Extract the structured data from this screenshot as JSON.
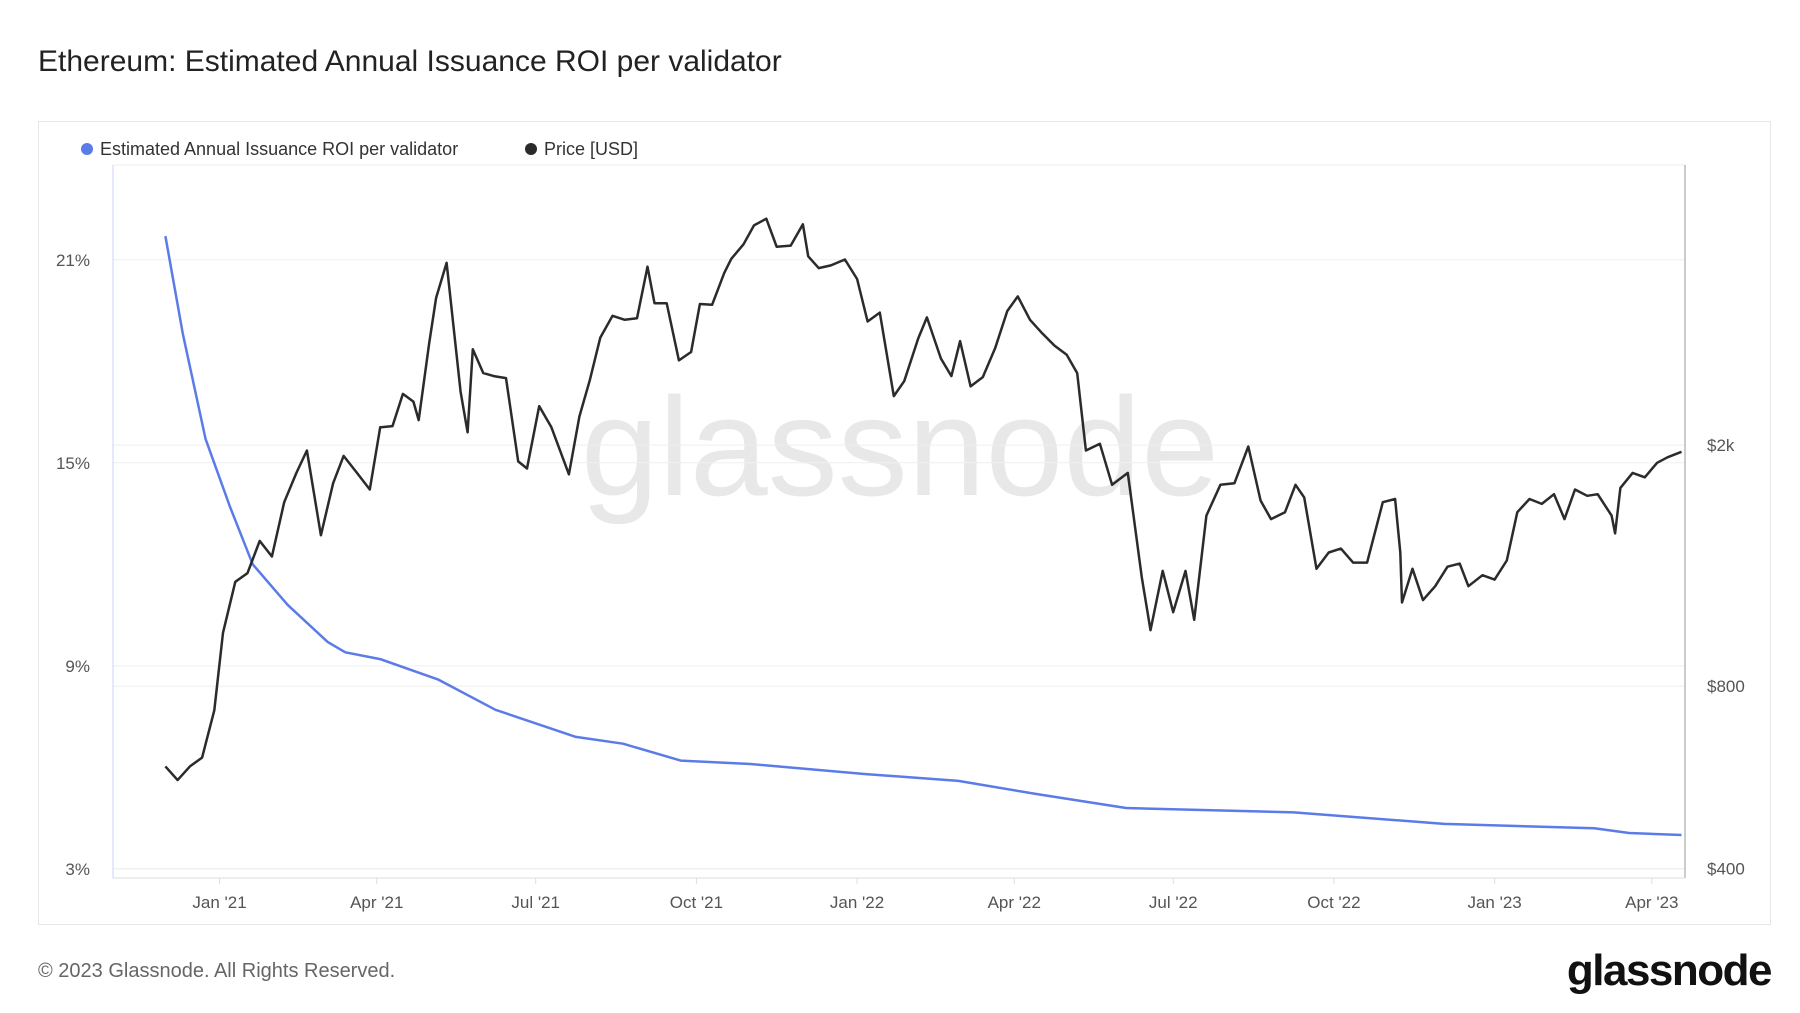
{
  "title": "Ethereum: Estimated Annual Issuance ROI per validator",
  "footer": "© 2023 Glassnode. All Rights Reserved.",
  "logo": "glassnode",
  "watermark": "glassnode",
  "chart_data": {
    "type": "line",
    "title": "Ethereum: Estimated Annual Issuance ROI per validator",
    "legend_position": "top-left",
    "grid": true,
    "x_range": [
      "2020-11-01",
      "2023-04-20"
    ],
    "x_ticks": [
      {
        "date": "2021-01-01",
        "label": "Jan '21"
      },
      {
        "date": "2021-04-01",
        "label": "Apr '21"
      },
      {
        "date": "2021-07-01",
        "label": "Jul '21"
      },
      {
        "date": "2021-10-01",
        "label": "Oct '21"
      },
      {
        "date": "2022-01-01",
        "label": "Jan '22"
      },
      {
        "date": "2022-04-01",
        "label": "Apr '22"
      },
      {
        "date": "2022-07-01",
        "label": "Jul '22"
      },
      {
        "date": "2022-10-01",
        "label": "Oct '22"
      },
      {
        "date": "2023-01-01",
        "label": "Jan '23"
      },
      {
        "date": "2023-04-01",
        "label": "Apr '23"
      }
    ],
    "y_left": {
      "range": [
        2.73,
        23.8
      ],
      "ticks": [
        {
          "v": 3,
          "label": "3%"
        },
        {
          "v": 9,
          "label": "9%"
        },
        {
          "v": 15,
          "label": "15%"
        },
        {
          "v": 21,
          "label": "21%"
        }
      ],
      "scale": "linear"
    },
    "y_right": {
      "range": [
        386,
        5800
      ],
      "ticks": [
        {
          "v": 400,
          "label": "$400"
        },
        {
          "v": 800,
          "label": "$800"
        },
        {
          "v": 2000,
          "label": "$2k"
        }
      ],
      "scale": "log"
    },
    "series": [
      {
        "name": "Estimated Annual Issuance ROI per validator",
        "axis": "left",
        "color": "#5b7be8",
        "points": [
          [
            "2020-12-01",
            21.7
          ],
          [
            "2020-12-11",
            18.8
          ],
          [
            "2020-12-24",
            15.7
          ],
          [
            "2021-01-07",
            13.7
          ],
          [
            "2021-01-20",
            12.0
          ],
          [
            "2021-02-09",
            10.8
          ],
          [
            "2021-03-04",
            9.7
          ],
          [
            "2021-03-14",
            9.4
          ],
          [
            "2021-04-03",
            9.2
          ],
          [
            "2021-05-06",
            8.6
          ],
          [
            "2021-06-08",
            7.7
          ],
          [
            "2021-07-24",
            6.9
          ],
          [
            "2021-08-20",
            6.7
          ],
          [
            "2021-09-22",
            6.2
          ],
          [
            "2021-11-01",
            6.1
          ],
          [
            "2022-01-06",
            5.8
          ],
          [
            "2022-02-28",
            5.6
          ],
          [
            "2022-04-15",
            5.2
          ],
          [
            "2022-06-04",
            4.8
          ],
          [
            "2022-09-08",
            4.67
          ],
          [
            "2022-12-03",
            4.33
          ],
          [
            "2023-02-27",
            4.2
          ],
          [
            "2023-03-19",
            4.06
          ],
          [
            "2023-04-18",
            4.0
          ]
        ]
      },
      {
        "name": "Price [USD]",
        "axis": "right",
        "color": "#2b2b2b",
        "points": [
          [
            "2020-12-01",
            590
          ],
          [
            "2020-12-08",
            560
          ],
          [
            "2020-12-15",
            590
          ],
          [
            "2020-12-22",
            610
          ],
          [
            "2020-12-29",
            730
          ],
          [
            "2021-01-03",
            980
          ],
          [
            "2021-01-10",
            1190
          ],
          [
            "2021-01-17",
            1230
          ],
          [
            "2021-01-24",
            1390
          ],
          [
            "2021-01-31",
            1310
          ],
          [
            "2021-02-07",
            1610
          ],
          [
            "2021-02-14",
            1800
          ],
          [
            "2021-02-20",
            1960
          ],
          [
            "2021-02-28",
            1420
          ],
          [
            "2021-03-07",
            1730
          ],
          [
            "2021-03-13",
            1920
          ],
          [
            "2021-03-20",
            1810
          ],
          [
            "2021-03-28",
            1690
          ],
          [
            "2021-04-03",
            2140
          ],
          [
            "2021-04-10",
            2150
          ],
          [
            "2021-04-16",
            2430
          ],
          [
            "2021-04-22",
            2360
          ],
          [
            "2021-04-25",
            2200
          ],
          [
            "2021-05-01",
            2940
          ],
          [
            "2021-05-05",
            3500
          ],
          [
            "2021-05-11",
            4000
          ],
          [
            "2021-05-19",
            2450
          ],
          [
            "2021-05-23",
            2100
          ],
          [
            "2021-05-26",
            2880
          ],
          [
            "2021-06-01",
            2630
          ],
          [
            "2021-06-07",
            2600
          ],
          [
            "2021-06-14",
            2580
          ],
          [
            "2021-06-21",
            1880
          ],
          [
            "2021-06-26",
            1830
          ],
          [
            "2021-07-03",
            2320
          ],
          [
            "2021-07-10",
            2140
          ],
          [
            "2021-07-20",
            1790
          ],
          [
            "2021-07-26",
            2230
          ],
          [
            "2021-08-01",
            2560
          ],
          [
            "2021-08-07",
            3010
          ],
          [
            "2021-08-14",
            3270
          ],
          [
            "2021-08-21",
            3220
          ],
          [
            "2021-08-28",
            3240
          ],
          [
            "2021-09-03",
            3940
          ],
          [
            "2021-09-07",
            3430
          ],
          [
            "2021-09-14",
            3430
          ],
          [
            "2021-09-21",
            2760
          ],
          [
            "2021-09-28",
            2850
          ],
          [
            "2021-10-03",
            3420
          ],
          [
            "2021-10-10",
            3410
          ],
          [
            "2021-10-17",
            3850
          ],
          [
            "2021-10-21",
            4060
          ],
          [
            "2021-10-28",
            4290
          ],
          [
            "2021-11-03",
            4610
          ],
          [
            "2021-11-10",
            4730
          ],
          [
            "2021-11-16",
            4250
          ],
          [
            "2021-11-24",
            4270
          ],
          [
            "2021-12-01",
            4630
          ],
          [
            "2021-12-04",
            4100
          ],
          [
            "2021-12-10",
            3920
          ],
          [
            "2021-12-17",
            3960
          ],
          [
            "2021-12-25",
            4050
          ],
          [
            "2022-01-01",
            3760
          ],
          [
            "2022-01-07",
            3200
          ],
          [
            "2022-01-14",
            3310
          ],
          [
            "2022-01-22",
            2410
          ],
          [
            "2022-01-28",
            2550
          ],
          [
            "2022-02-05",
            3000
          ],
          [
            "2022-02-10",
            3250
          ],
          [
            "2022-02-18",
            2780
          ],
          [
            "2022-02-24",
            2600
          ],
          [
            "2022-03-01",
            2970
          ],
          [
            "2022-03-07",
            2500
          ],
          [
            "2022-03-14",
            2590
          ],
          [
            "2022-03-21",
            2890
          ],
          [
            "2022-03-28",
            3330
          ],
          [
            "2022-04-03",
            3520
          ],
          [
            "2022-04-10",
            3220
          ],
          [
            "2022-04-17",
            3060
          ],
          [
            "2022-04-24",
            2920
          ],
          [
            "2022-05-01",
            2820
          ],
          [
            "2022-05-07",
            2630
          ],
          [
            "2022-05-12",
            1960
          ],
          [
            "2022-05-20",
            2010
          ],
          [
            "2022-05-27",
            1720
          ],
          [
            "2022-06-05",
            1800
          ],
          [
            "2022-06-13",
            1210
          ],
          [
            "2022-06-18",
            990
          ],
          [
            "2022-06-25",
            1240
          ],
          [
            "2022-07-01",
            1060
          ],
          [
            "2022-07-08",
            1240
          ],
          [
            "2022-07-13",
            1030
          ],
          [
            "2022-07-20",
            1530
          ],
          [
            "2022-07-28",
            1720
          ],
          [
            "2022-08-05",
            1730
          ],
          [
            "2022-08-13",
            1990
          ],
          [
            "2022-08-20",
            1620
          ],
          [
            "2022-08-26",
            1510
          ],
          [
            "2022-09-03",
            1550
          ],
          [
            "2022-09-09",
            1720
          ],
          [
            "2022-09-14",
            1640
          ],
          [
            "2022-09-21",
            1250
          ],
          [
            "2022-09-28",
            1330
          ],
          [
            "2022-10-05",
            1350
          ],
          [
            "2022-10-12",
            1280
          ],
          [
            "2022-10-20",
            1280
          ],
          [
            "2022-10-29",
            1610
          ],
          [
            "2022-11-05",
            1630
          ],
          [
            "2022-11-08",
            1330
          ],
          [
            "2022-11-09",
            1100
          ],
          [
            "2022-11-15",
            1250
          ],
          [
            "2022-11-21",
            1110
          ],
          [
            "2022-11-28",
            1170
          ],
          [
            "2022-12-05",
            1260
          ],
          [
            "2022-12-12",
            1275
          ],
          [
            "2022-12-17",
            1170
          ],
          [
            "2022-12-25",
            1220
          ],
          [
            "2023-01-01",
            1200
          ],
          [
            "2023-01-08",
            1290
          ],
          [
            "2023-01-14",
            1550
          ],
          [
            "2023-01-21",
            1630
          ],
          [
            "2023-01-28",
            1600
          ],
          [
            "2023-02-04",
            1660
          ],
          [
            "2023-02-10",
            1510
          ],
          [
            "2023-02-16",
            1690
          ],
          [
            "2023-02-23",
            1650
          ],
          [
            "2023-03-01",
            1660
          ],
          [
            "2023-03-09",
            1530
          ],
          [
            "2023-03-11",
            1430
          ],
          [
            "2023-03-14",
            1700
          ],
          [
            "2023-03-21",
            1800
          ],
          [
            "2023-03-28",
            1770
          ],
          [
            "2023-04-04",
            1870
          ],
          [
            "2023-04-10",
            1910
          ],
          [
            "2023-04-18",
            1950
          ]
        ]
      }
    ]
  }
}
